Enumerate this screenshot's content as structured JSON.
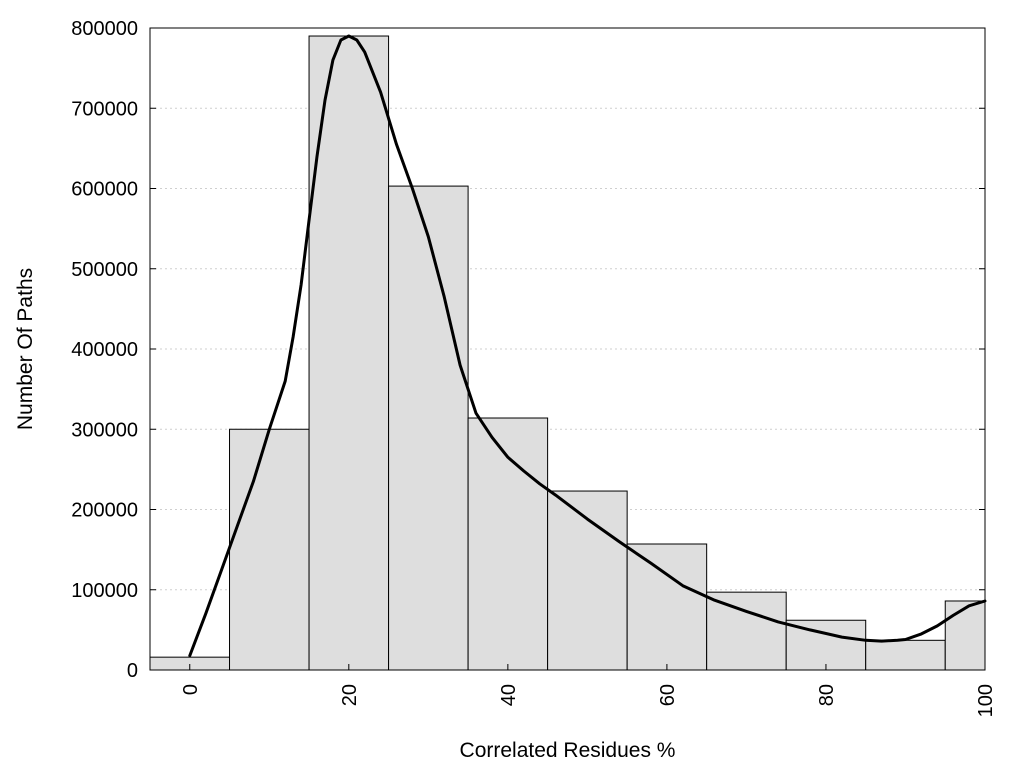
{
  "chart_data": {
    "type": "bar",
    "xlabel": "Correlated Residues %",
    "ylabel": "Number Of Paths",
    "xlim": [
      -5,
      100
    ],
    "ylim": [
      0,
      800000
    ],
    "x_ticks": [
      0,
      20,
      40,
      60,
      80,
      100
    ],
    "y_ticks": [
      0,
      100000,
      200000,
      300000,
      400000,
      500000,
      600000,
      700000,
      800000
    ],
    "bin_width": 10,
    "x": [
      0,
      10,
      20,
      30,
      40,
      50,
      60,
      70,
      80,
      90,
      100
    ],
    "values": [
      16000,
      300000,
      790000,
      603000,
      314000,
      223000,
      157000,
      97000,
      62000,
      37000,
      86000
    ],
    "density_curve": {
      "x": [
        0,
        2,
        4,
        6,
        8,
        10,
        12,
        13,
        14,
        15,
        16,
        17,
        18,
        19,
        20,
        21,
        22,
        24,
        26,
        28,
        30,
        32,
        34,
        36,
        38,
        40,
        42,
        44,
        46,
        48,
        50,
        54,
        58,
        62,
        66,
        70,
        74,
        78,
        82,
        85,
        87,
        89,
        90,
        92,
        94,
        96,
        98,
        100
      ],
      "y": [
        18000,
        70000,
        125000,
        180000,
        235000,
        300000,
        360000,
        415000,
        480000,
        560000,
        640000,
        710000,
        760000,
        785000,
        790000,
        785000,
        770000,
        720000,
        655000,
        600000,
        540000,
        465000,
        380000,
        320000,
        290000,
        265000,
        248000,
        232000,
        218000,
        203000,
        188000,
        160000,
        133000,
        105000,
        87000,
        73000,
        60000,
        50000,
        41000,
        37000,
        36000,
        37000,
        38000,
        45000,
        55000,
        68000,
        80000,
        86000
      ]
    },
    "grid": true,
    "legend": "none"
  }
}
